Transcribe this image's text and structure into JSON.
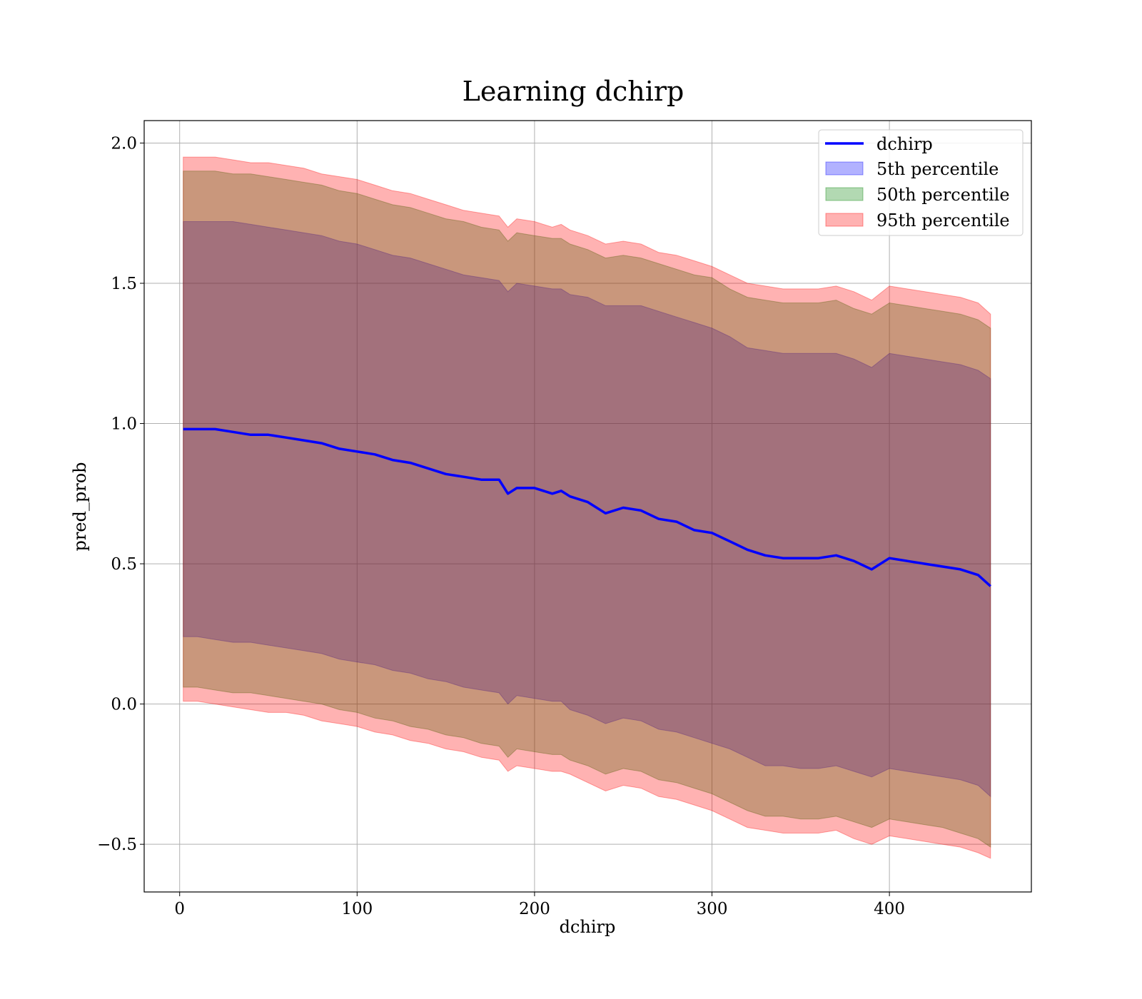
{
  "chart_data": {
    "type": "area",
    "title": "Learning dchirp",
    "xlabel": "dchirp",
    "ylabel": "pred_prob",
    "xlim": [
      -20,
      480
    ],
    "ylim": [
      -0.67,
      2.08
    ],
    "x_ticks": [
      0,
      100,
      200,
      300,
      400
    ],
    "x_tick_labels": [
      "0",
      "100",
      "200",
      "300",
      "400"
    ],
    "y_ticks": [
      -0.5,
      0.0,
      0.5,
      1.0,
      1.5,
      2.0
    ],
    "y_tick_labels": [
      "−0.5",
      "0.0",
      "0.5",
      "1.0",
      "1.5",
      "2.0"
    ],
    "grid": true,
    "legend_position": "top-right",
    "x": [
      2,
      10,
      20,
      30,
      40,
      50,
      60,
      70,
      80,
      90,
      100,
      110,
      120,
      130,
      140,
      150,
      160,
      170,
      180,
      185,
      190,
      200,
      210,
      215,
      220,
      230,
      240,
      250,
      260,
      270,
      280,
      290,
      300,
      310,
      320,
      330,
      340,
      350,
      360,
      370,
      380,
      390,
      400,
      410,
      420,
      430,
      440,
      450,
      457
    ],
    "line": {
      "name": "dchirp",
      "color": "#0000ff",
      "values": [
        0.98,
        0.98,
        0.98,
        0.97,
        0.96,
        0.96,
        0.95,
        0.94,
        0.93,
        0.91,
        0.9,
        0.89,
        0.87,
        0.86,
        0.84,
        0.82,
        0.81,
        0.8,
        0.8,
        0.75,
        0.77,
        0.77,
        0.75,
        0.76,
        0.74,
        0.72,
        0.68,
        0.7,
        0.69,
        0.66,
        0.65,
        0.62,
        0.61,
        0.58,
        0.55,
        0.53,
        0.52,
        0.52,
        0.52,
        0.53,
        0.51,
        0.48,
        0.52,
        0.51,
        0.5,
        0.49,
        0.48,
        0.46,
        0.42
      ]
    },
    "bands": [
      {
        "name": "5th percentile",
        "color": "#0000ff",
        "opacity": 0.3,
        "upper": [
          1.72,
          1.72,
          1.72,
          1.72,
          1.71,
          1.7,
          1.69,
          1.68,
          1.67,
          1.65,
          1.64,
          1.62,
          1.6,
          1.59,
          1.57,
          1.55,
          1.53,
          1.52,
          1.51,
          1.47,
          1.5,
          1.49,
          1.48,
          1.48,
          1.46,
          1.45,
          1.42,
          1.42,
          1.42,
          1.4,
          1.38,
          1.36,
          1.34,
          1.31,
          1.27,
          1.26,
          1.25,
          1.25,
          1.25,
          1.25,
          1.23,
          1.2,
          1.25,
          1.24,
          1.23,
          1.22,
          1.21,
          1.19,
          1.16
        ],
        "lower": [
          0.24,
          0.24,
          0.23,
          0.22,
          0.22,
          0.21,
          0.2,
          0.19,
          0.18,
          0.16,
          0.15,
          0.14,
          0.12,
          0.11,
          0.09,
          0.08,
          0.06,
          0.05,
          0.04,
          0.0,
          0.03,
          0.02,
          0.01,
          0.01,
          -0.02,
          -0.04,
          -0.07,
          -0.05,
          -0.06,
          -0.09,
          -0.1,
          -0.12,
          -0.14,
          -0.16,
          -0.19,
          -0.22,
          -0.22,
          -0.23,
          -0.23,
          -0.22,
          -0.24,
          -0.26,
          -0.23,
          -0.24,
          -0.25,
          -0.26,
          -0.27,
          -0.29,
          -0.33
        ]
      },
      {
        "name": "50th percentile",
        "color": "#008000",
        "opacity": 0.3,
        "upper": [
          1.9,
          1.9,
          1.9,
          1.89,
          1.89,
          1.88,
          1.87,
          1.86,
          1.85,
          1.83,
          1.82,
          1.8,
          1.78,
          1.77,
          1.75,
          1.73,
          1.72,
          1.7,
          1.69,
          1.65,
          1.68,
          1.67,
          1.66,
          1.66,
          1.64,
          1.62,
          1.59,
          1.6,
          1.59,
          1.57,
          1.55,
          1.53,
          1.52,
          1.48,
          1.45,
          1.44,
          1.43,
          1.43,
          1.43,
          1.44,
          1.41,
          1.39,
          1.43,
          1.42,
          1.41,
          1.4,
          1.39,
          1.37,
          1.34
        ],
        "lower": [
          0.06,
          0.06,
          0.05,
          0.04,
          0.04,
          0.03,
          0.02,
          0.01,
          0.0,
          -0.02,
          -0.03,
          -0.05,
          -0.06,
          -0.08,
          -0.09,
          -0.11,
          -0.12,
          -0.14,
          -0.15,
          -0.19,
          -0.16,
          -0.17,
          -0.18,
          -0.18,
          -0.2,
          -0.22,
          -0.25,
          -0.23,
          -0.24,
          -0.27,
          -0.28,
          -0.3,
          -0.32,
          -0.35,
          -0.38,
          -0.4,
          -0.4,
          -0.41,
          -0.41,
          -0.4,
          -0.42,
          -0.44,
          -0.41,
          -0.42,
          -0.43,
          -0.44,
          -0.46,
          -0.48,
          -0.51
        ]
      },
      {
        "name": "95th percentile",
        "color": "#ff0000",
        "opacity": 0.3,
        "upper": [
          1.95,
          1.95,
          1.95,
          1.94,
          1.93,
          1.93,
          1.92,
          1.91,
          1.89,
          1.88,
          1.87,
          1.85,
          1.83,
          1.82,
          1.8,
          1.78,
          1.76,
          1.75,
          1.74,
          1.7,
          1.73,
          1.72,
          1.7,
          1.71,
          1.69,
          1.67,
          1.64,
          1.65,
          1.64,
          1.61,
          1.6,
          1.58,
          1.56,
          1.53,
          1.5,
          1.49,
          1.48,
          1.48,
          1.48,
          1.49,
          1.47,
          1.44,
          1.49,
          1.48,
          1.47,
          1.46,
          1.45,
          1.43,
          1.39
        ],
        "lower": [
          0.01,
          0.01,
          0.0,
          -0.01,
          -0.02,
          -0.03,
          -0.03,
          -0.04,
          -0.06,
          -0.07,
          -0.08,
          -0.1,
          -0.11,
          -0.13,
          -0.14,
          -0.16,
          -0.17,
          -0.19,
          -0.2,
          -0.24,
          -0.22,
          -0.23,
          -0.24,
          -0.24,
          -0.25,
          -0.28,
          -0.31,
          -0.29,
          -0.3,
          -0.33,
          -0.34,
          -0.36,
          -0.38,
          -0.41,
          -0.44,
          -0.45,
          -0.46,
          -0.46,
          -0.46,
          -0.45,
          -0.48,
          -0.5,
          -0.47,
          -0.48,
          -0.49,
          -0.5,
          -0.51,
          -0.53,
          -0.55
        ]
      }
    ]
  }
}
